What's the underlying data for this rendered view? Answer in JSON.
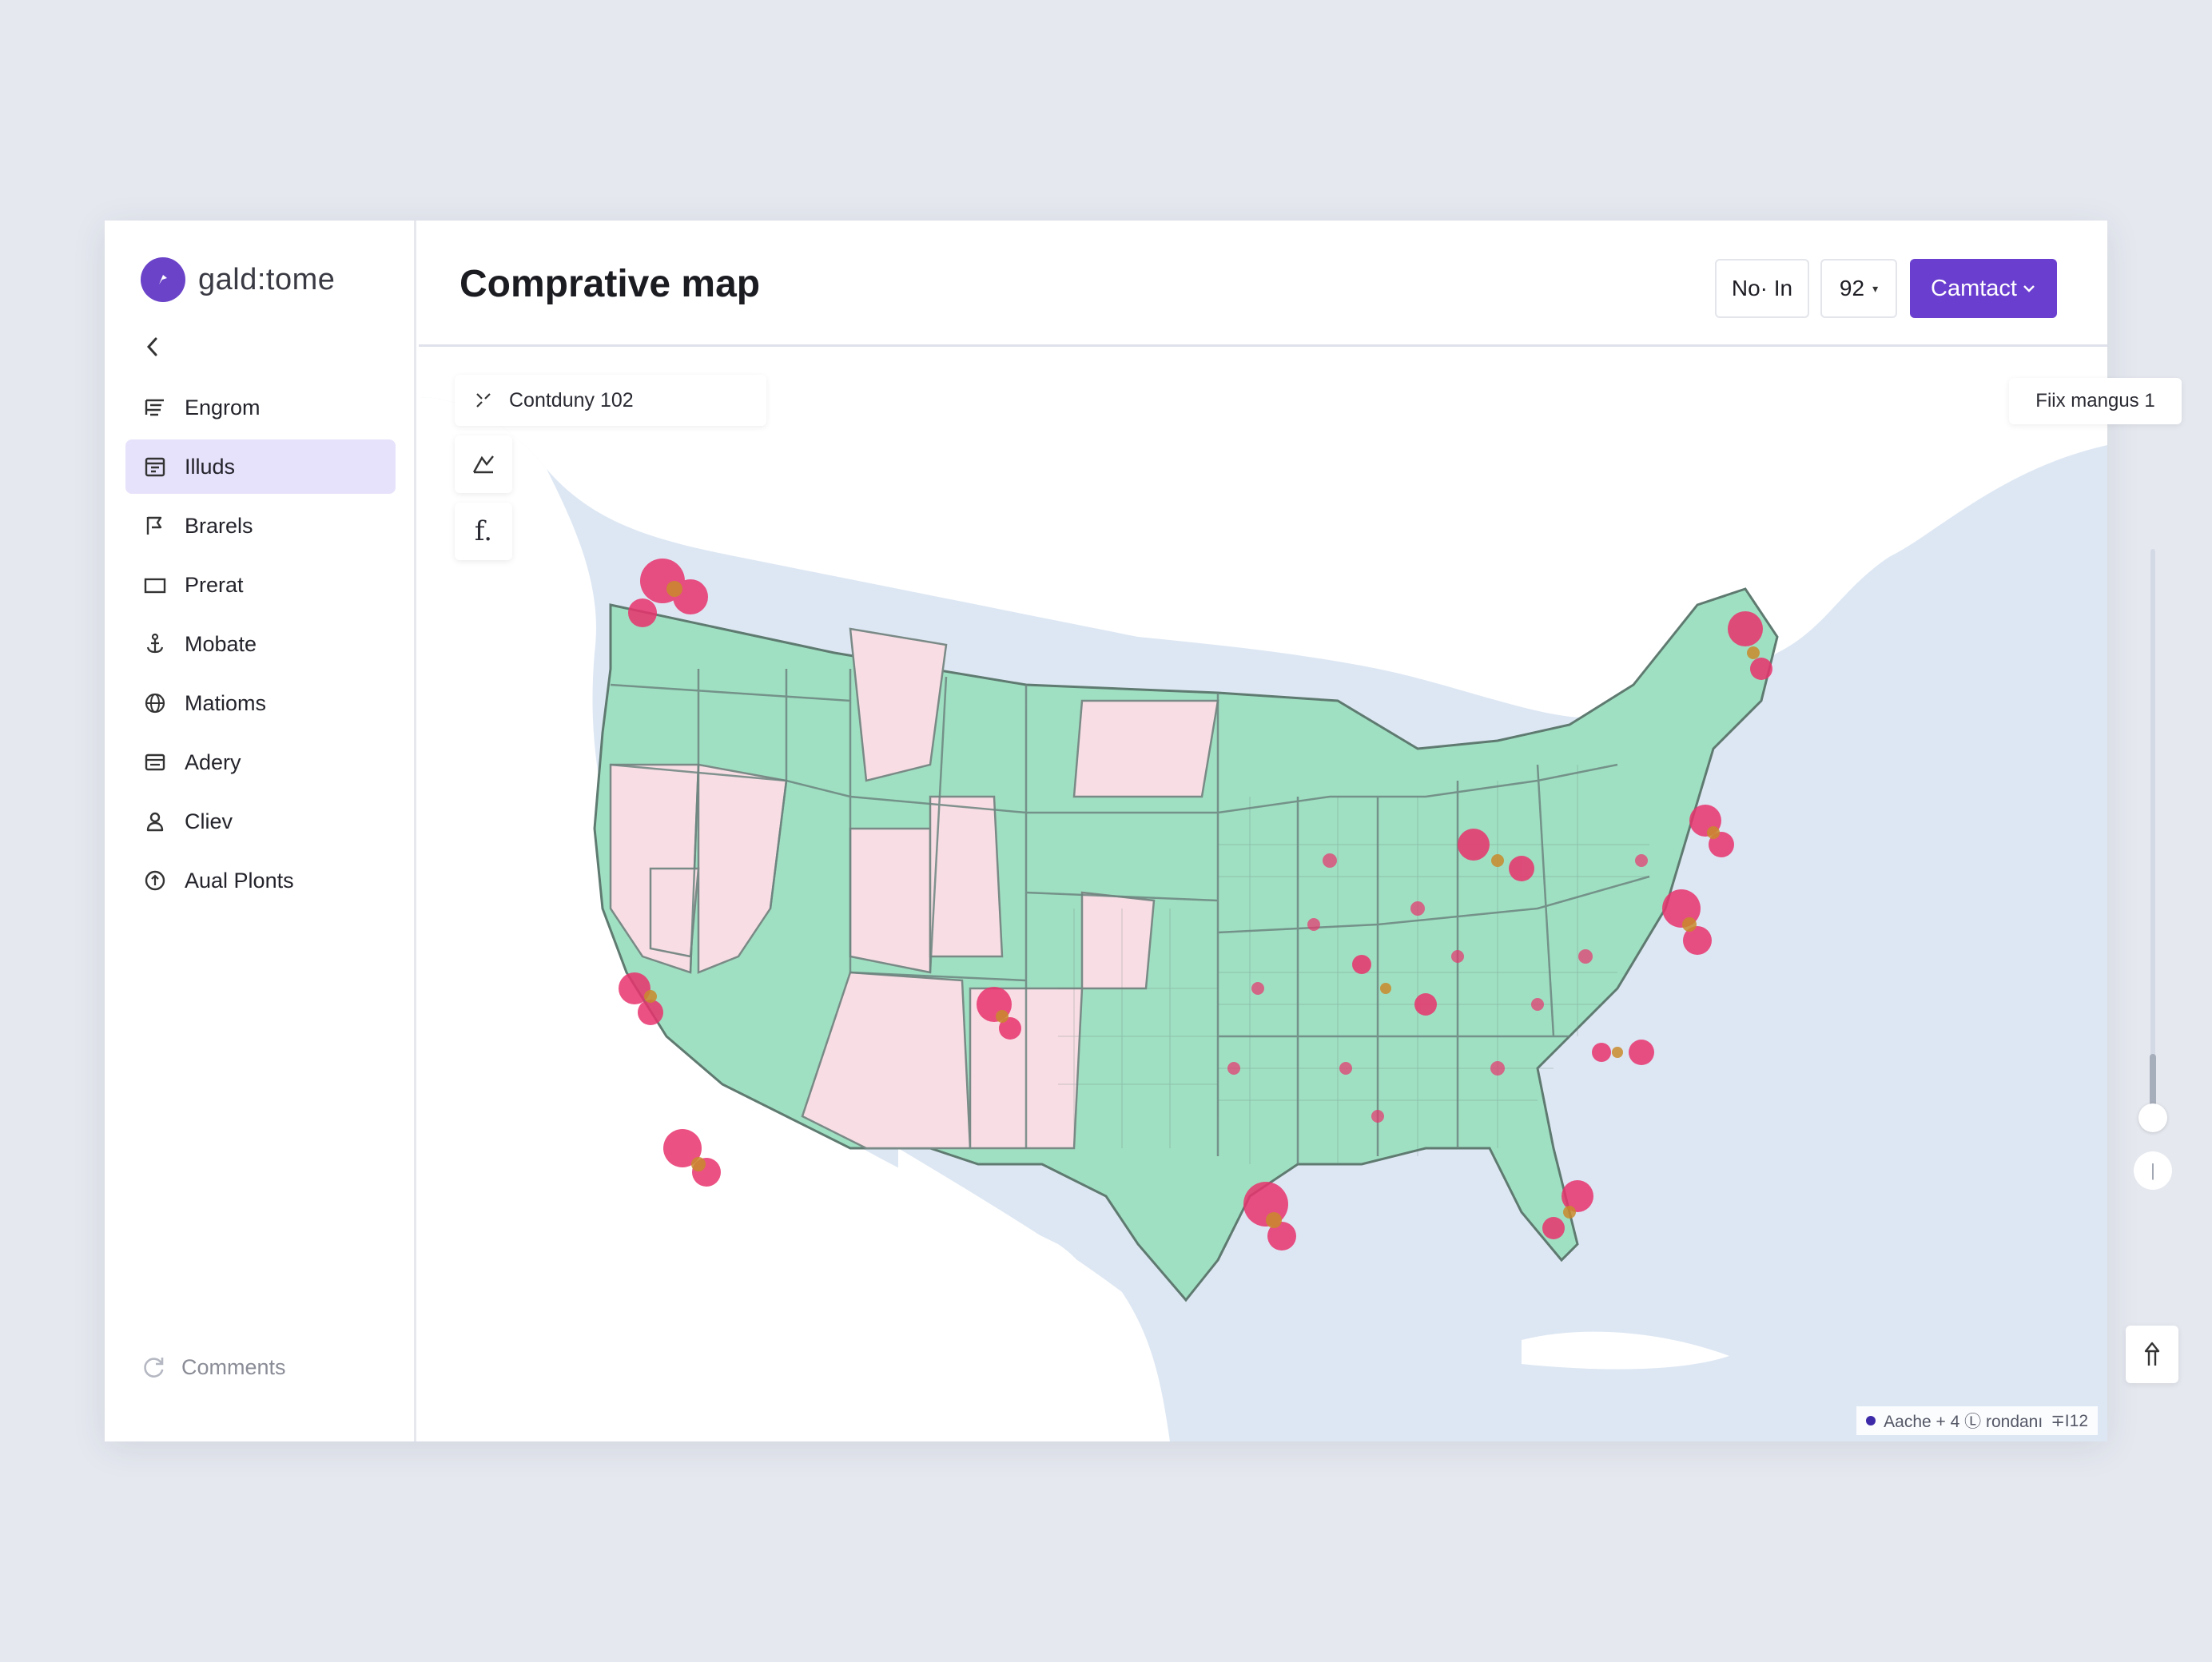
{
  "app": {
    "brand_name": "gald:tome"
  },
  "sidebar": {
    "items": [
      {
        "label": "Engrom",
        "icon": "list-filter-icon",
        "active": false
      },
      {
        "label": "Illuds",
        "icon": "calendar-icon",
        "active": true
      },
      {
        "label": "Brarels",
        "icon": "flag-icon",
        "active": false
      },
      {
        "label": "Prerat",
        "icon": "folder-icon",
        "active": false
      },
      {
        "label": "Mobate",
        "icon": "anchor-icon",
        "active": false
      },
      {
        "label": "Matioms",
        "icon": "globe-icon",
        "active": false
      },
      {
        "label": "Adery",
        "icon": "card-icon",
        "active": false
      },
      {
        "label": "Cliev",
        "icon": "user-icon",
        "active": false
      },
      {
        "label": "Aual Plonts",
        "icon": "plus-circle-icon",
        "active": false
      }
    ],
    "footer_label": "Comments"
  },
  "header": {
    "title": "Comprative map",
    "zoom_label": "No· In",
    "select_value": "92",
    "primary_button": "Camtact"
  },
  "map": {
    "layer_label": "Contduny 102",
    "tool_b_label": "f.",
    "filter_label": "Fiix mangus 1",
    "zoom_minus_label": "|",
    "attribution_text": "Aache + 4 Ⓛ rondanı",
    "attribution_code": "∓I12",
    "colors": {
      "green": "#9fe0c2",
      "pink": "#f8dde4",
      "water": "#dde7f3",
      "land": "#ffffff",
      "hotspot": "#e8336d",
      "accent": "#6a3fcf"
    }
  }
}
